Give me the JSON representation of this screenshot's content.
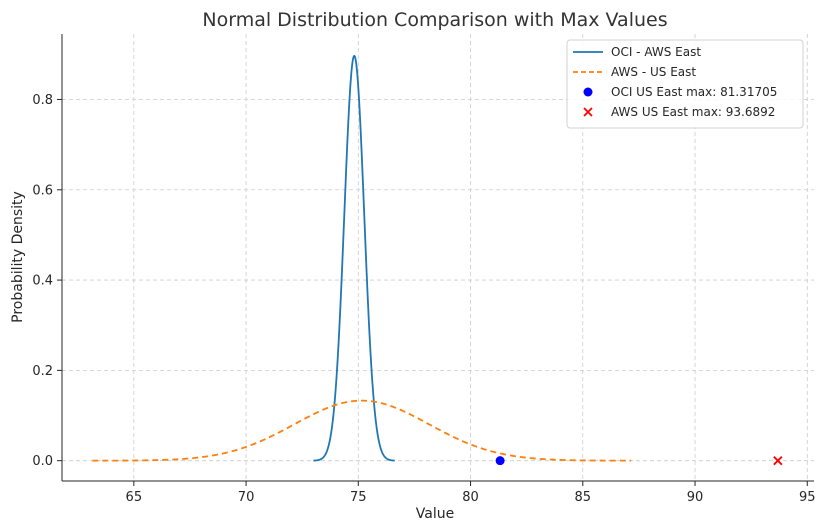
{
  "chart_data": {
    "type": "line",
    "title": "Normal Distribution Comparison with Max Values",
    "xlabel": "Value",
    "ylabel": "Probability Density",
    "xlim": [
      61.8,
      95.3
    ],
    "ylim": [
      -0.045,
      0.945
    ],
    "xticks": [
      65,
      70,
      75,
      80,
      85,
      90,
      95
    ],
    "yticks": [
      0.0,
      0.2,
      0.4,
      0.6,
      0.8
    ],
    "grid": true,
    "legend_position": "top-right",
    "series": [
      {
        "name": "OCI - AWS East",
        "kind": "normal_pdf",
        "mean": 74.82,
        "std": 0.445,
        "x_range": [
          73.0,
          76.62
        ],
        "color": "#1f77b4",
        "linestyle": "solid"
      },
      {
        "name": "AWS - US East",
        "kind": "normal_pdf",
        "mean": 75.15,
        "std": 3.0,
        "x_range": [
          63.15,
          87.15
        ],
        "color": "#ff7f0e",
        "linestyle": "dashed"
      }
    ],
    "markers": [
      {
        "label": "OCI US East max: 81.31705",
        "x": 81.31705,
        "y": 0,
        "marker": "circle",
        "color": "#0000ff"
      },
      {
        "label": "AWS US East max: 93.6892",
        "x": 93.6892,
        "y": 0,
        "marker": "x",
        "color": "#ff0000"
      }
    ]
  }
}
